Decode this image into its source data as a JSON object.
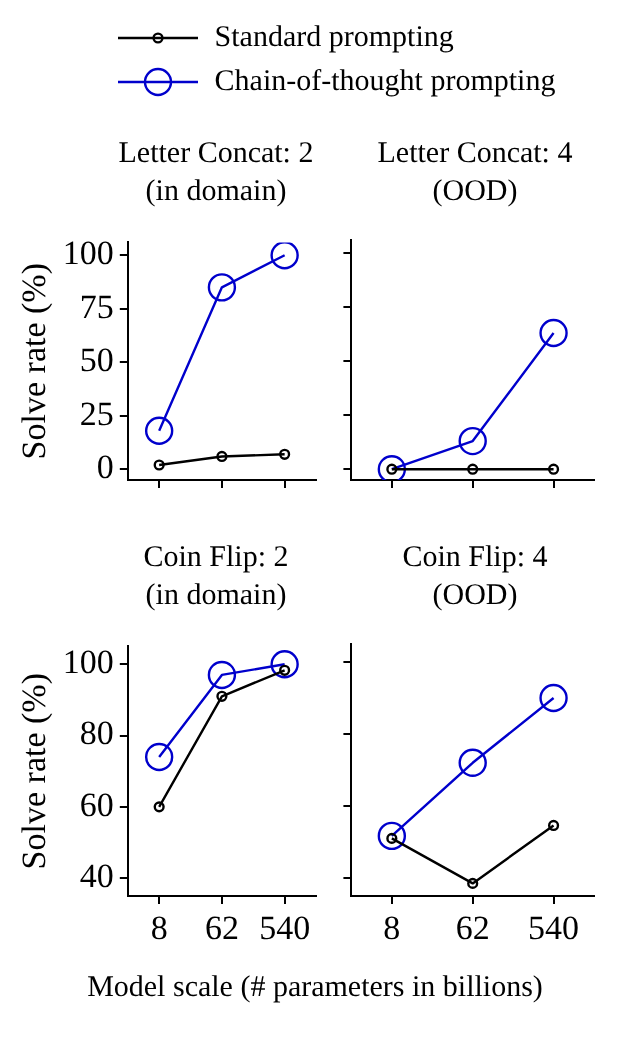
{
  "chart_data": [
    {
      "type": "line",
      "title": "Letter Concat: 2\n(in domain)",
      "ylabel": "Solve rate (%)",
      "categories": [
        "8",
        "62",
        "540"
      ],
      "legend": "top",
      "marker": "circle",
      "line_style": "solid",
      "tick_labels": "y",
      "ylim": [
        -5,
        106
      ],
      "yticks": [
        0,
        25,
        50,
        75,
        100
      ],
      "series": [
        {
          "name": "Standard prompting",
          "color": "#000000",
          "values": [
            2,
            6,
            7
          ]
        },
        {
          "name": "Chain-of-thought prompting",
          "color": "#0000cc",
          "values": [
            18,
            85,
            100
          ]
        }
      ]
    },
    {
      "type": "line",
      "title": "Letter Concat: 4\n(OOD)",
      "categories": [
        "8",
        "62",
        "540"
      ],
      "marker": "circle",
      "line_style": "solid",
      "tick_labels": false,
      "ylim": [
        -5,
        106
      ],
      "yticks": [
        0,
        25,
        50,
        75,
        100
      ],
      "series": [
        {
          "color": "#000000",
          "values": [
            0,
            0,
            0
          ]
        },
        {
          "color": "#0000cc",
          "values": [
            0,
            13,
            63
          ]
        }
      ]
    },
    {
      "type": "line",
      "title": "Coin Flip: 2\n(in domain)",
      "ylabel": "Solve rate (%)",
      "xlabel": "Model scale (# parameters in billions)",
      "categories": [
        "8",
        "62",
        "540"
      ],
      "marker": "circle",
      "line_style": "solid",
      "ylim": [
        35,
        105
      ],
      "yticks": [
        40,
        60,
        80,
        100
      ],
      "series": [
        {
          "color": "#000000",
          "values": [
            60,
            91,
            98.3
          ]
        },
        {
          "color": "#0000cc",
          "values": [
            74,
            97,
            100
          ]
        }
      ]
    },
    {
      "type": "line",
      "title": "Coin Flip: 4\n(OOD)",
      "categories": [
        "8",
        "62",
        "540"
      ],
      "marker": "circle",
      "line_style": "solid",
      "tick_labels": "x",
      "ylim": [
        35,
        105
      ],
      "yticks": [
        40,
        60,
        80,
        100
      ],
      "series": [
        {
          "color": "#000000",
          "values": [
            51,
            38.5,
            54.6
          ]
        },
        {
          "color": "#0000cc",
          "values": [
            51.7,
            72,
            90
          ]
        }
      ]
    }
  ]
}
